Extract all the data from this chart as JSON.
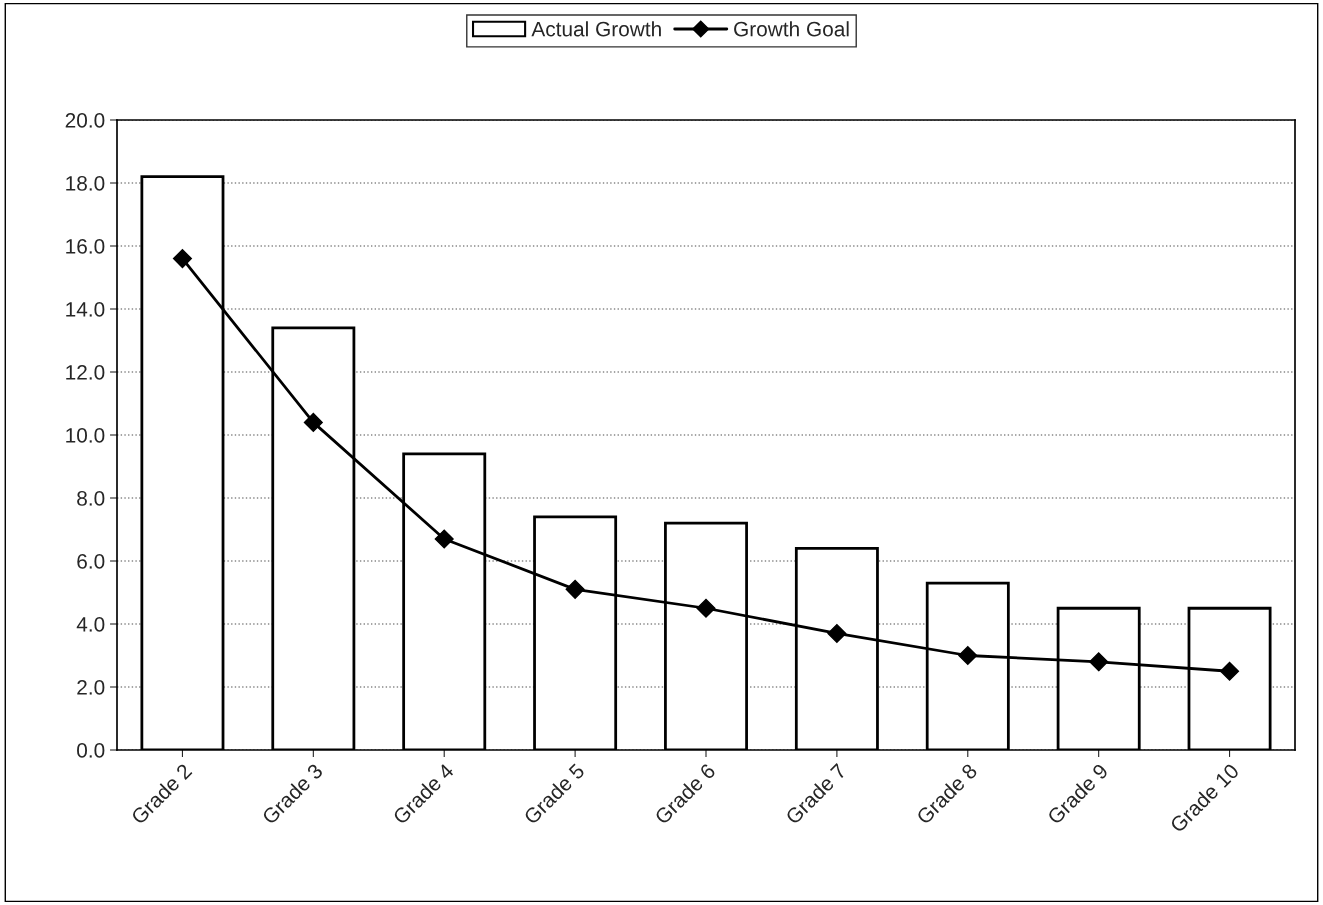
{
  "chart_data": {
    "type": "bar",
    "categories": [
      "Grade 2",
      "Grade 3",
      "Grade 4",
      "Grade 5",
      "Grade 6",
      "Grade 7",
      "Grade 8",
      "Grade 9",
      "Grade 10"
    ],
    "series": [
      {
        "name": "Actual Growth",
        "color": "#ffffff",
        "values": [
          18.2,
          13.4,
          9.4,
          7.4,
          7.2,
          6.4,
          5.3,
          4.5,
          4.5
        ]
      },
      {
        "name": "Growth Goal",
        "type": "line",
        "color": "#000000",
        "marker": "diamond",
        "values": [
          15.6,
          10.4,
          6.7,
          5.1,
          4.5,
          3.7,
          3.0,
          2.8,
          2.5
        ]
      }
    ],
    "ylim": [
      0,
      20
    ],
    "yticks": [
      {
        "value": 0,
        "label": "0.0"
      },
      {
        "value": 2,
        "label": "2.0"
      },
      {
        "value": 4,
        "label": "4.0"
      },
      {
        "value": 6,
        "label": "6.0"
      },
      {
        "value": 8,
        "label": "8.0"
      },
      {
        "value": 10,
        "label": "10.0"
      },
      {
        "value": 12,
        "label": "12.0"
      },
      {
        "value": 14,
        "label": "14.0"
      },
      {
        "value": 16,
        "label": "16.0"
      },
      {
        "value": 18,
        "label": "18.0"
      },
      {
        "value": 20,
        "label": "20.0"
      }
    ],
    "grid": "y",
    "legend": "top"
  }
}
